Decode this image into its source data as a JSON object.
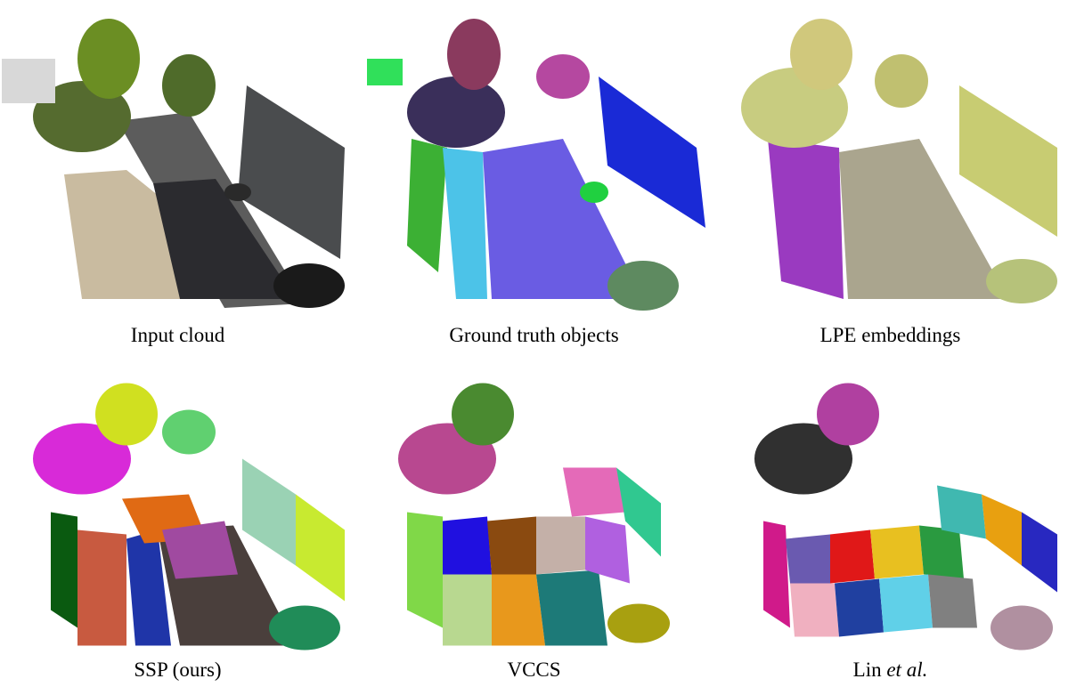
{
  "figure": {
    "panels": [
      {
        "caption": "Input cloud"
      },
      {
        "caption": "Ground truth objects"
      },
      {
        "caption": "LPE embeddings"
      },
      {
        "caption": "SSP (ours)"
      },
      {
        "caption": "VCCS"
      },
      {
        "caption_prefix": "Lin ",
        "caption_emph": "et al."
      }
    ]
  }
}
